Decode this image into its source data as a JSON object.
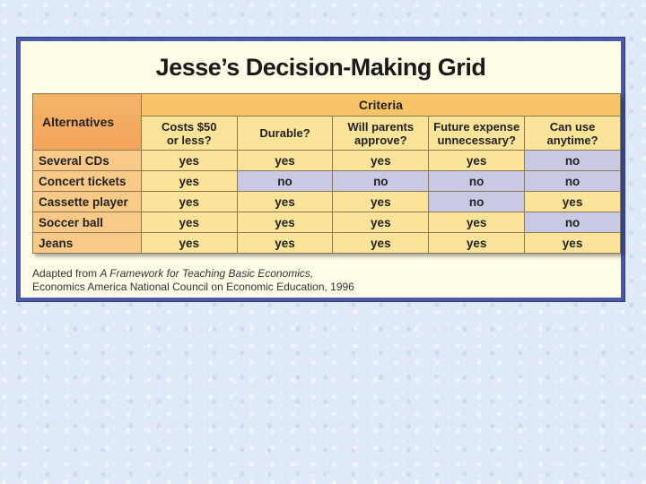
{
  "title": "Jesse’s Decision-Making Grid",
  "alternatives_header": "Alternatives",
  "criteria_header": "Criteria",
  "criteria": [
    "Costs $50 or less?",
    "Durable?",
    "Will parents approve?",
    "Future expense unnecessary?",
    "Can use anytime?"
  ],
  "criteria_lines": [
    [
      "Costs $50",
      "or less?"
    ],
    [
      "Durable?"
    ],
    [
      "Will parents",
      "approve?"
    ],
    [
      "Future expense",
      "unnecessary?"
    ],
    [
      "Can use",
      "anytime?"
    ]
  ],
  "rows": [
    {
      "label": "Several CDs",
      "values": [
        "yes",
        "yes",
        "yes",
        "yes",
        "no"
      ]
    },
    {
      "label": "Concert tickets",
      "values": [
        "yes",
        "no",
        "no",
        "no",
        "no"
      ]
    },
    {
      "label": "Cassette player",
      "values": [
        "yes",
        "yes",
        "yes",
        "no",
        "yes"
      ]
    },
    {
      "label": "Soccer ball",
      "values": [
        "yes",
        "yes",
        "yes",
        "yes",
        "no"
      ]
    },
    {
      "label": "Jeans",
      "values": [
        "yes",
        "yes",
        "yes",
        "yes",
        "yes"
      ]
    }
  ],
  "credit": {
    "prefix": "Adapted from ",
    "work": "A Framework for Teaching Basic Economics,",
    "line2": "Economics America National Council on Economic Education, 1996"
  },
  "colors": {
    "yes_cell": "#fbe39a",
    "no_cell": "#c9c9e6",
    "border_frame": "#4a5aa8"
  }
}
